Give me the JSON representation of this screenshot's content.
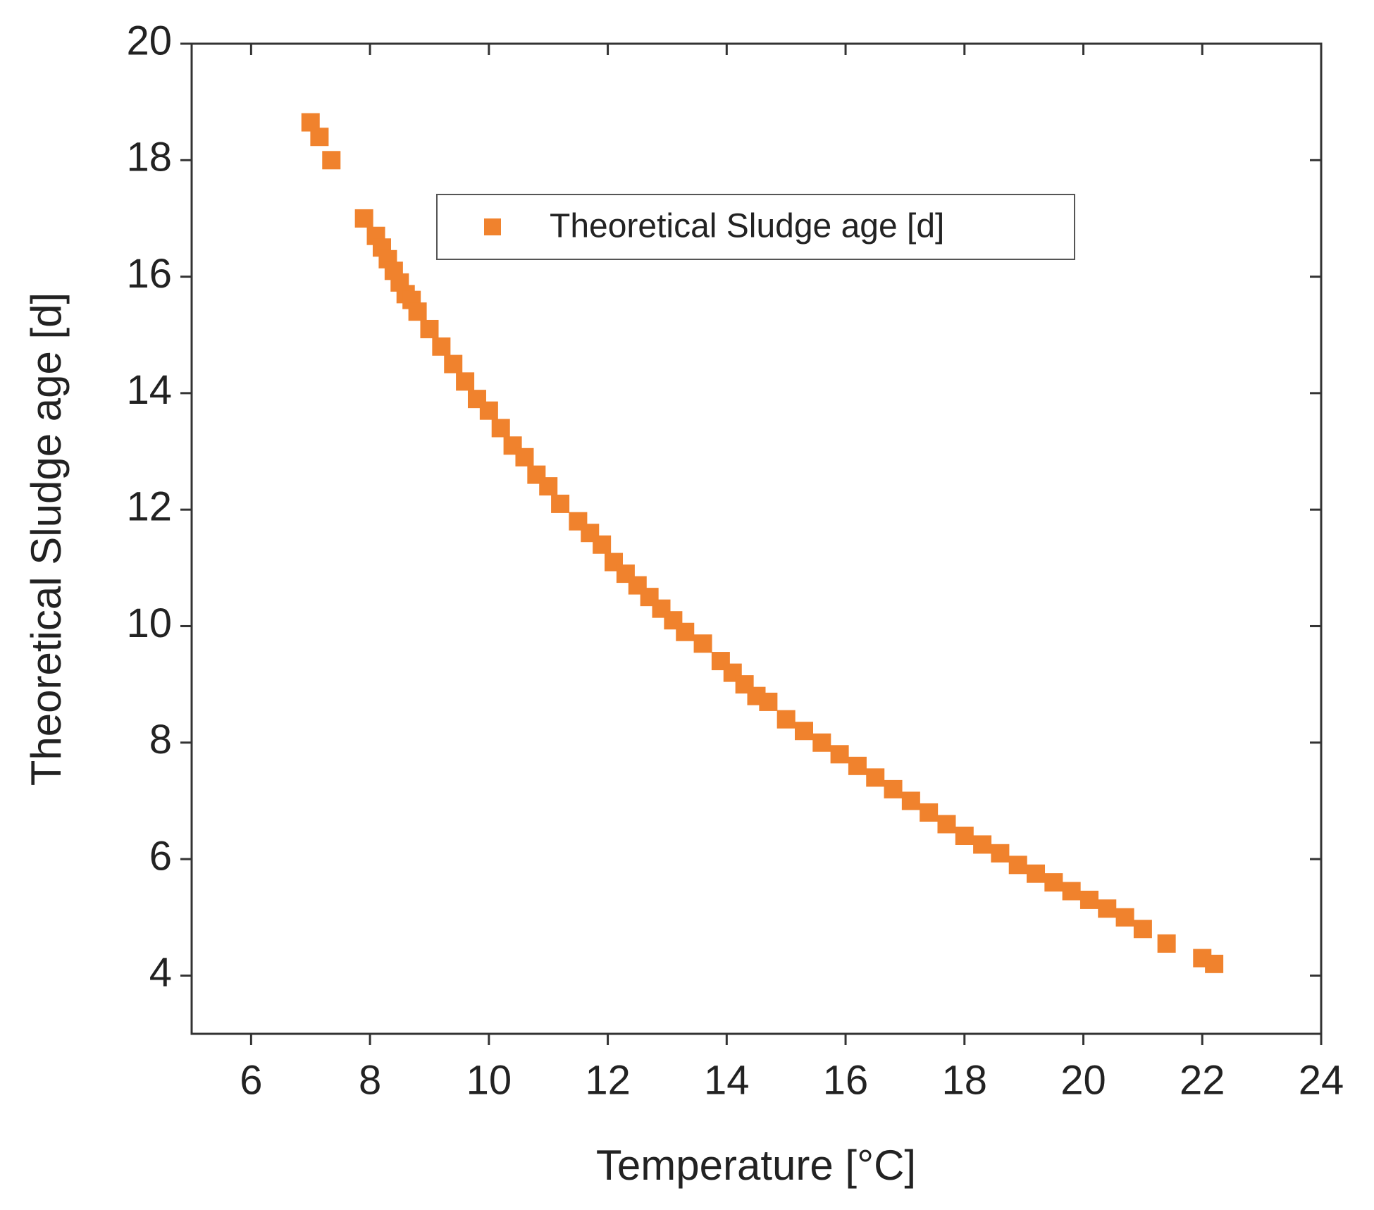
{
  "chart_data": {
    "type": "scatter",
    "x_label": "Temperature [°C]",
    "y_label": "Theoretical  Sludge age   [d]",
    "xlim": [
      5,
      24
    ],
    "ylim": [
      3,
      20
    ],
    "xticks": [
      6,
      8,
      10,
      12,
      14,
      16,
      18,
      20,
      22,
      24
    ],
    "yticks": [
      4,
      6,
      8,
      10,
      12,
      14,
      16,
      18,
      20
    ],
    "legend": "top",
    "series": [
      {
        "name": "Theoretical  Sludge age  [d]",
        "color": "#f0822d",
        "marker": "square",
        "x": [
          7.0,
          7.15,
          7.35,
          7.9,
          8.1,
          8.2,
          8.3,
          8.4,
          8.5,
          8.6,
          8.7,
          8.8,
          9.0,
          9.2,
          9.4,
          9.6,
          9.8,
          10.0,
          10.2,
          10.4,
          10.6,
          10.8,
          11.0,
          11.2,
          11.5,
          11.7,
          11.9,
          12.1,
          12.3,
          12.5,
          12.7,
          12.9,
          13.1,
          13.3,
          13.6,
          13.9,
          14.1,
          14.3,
          14.5,
          14.7,
          15.0,
          15.3,
          15.6,
          15.9,
          16.2,
          16.5,
          16.8,
          17.1,
          17.4,
          17.7,
          18.0,
          18.3,
          18.6,
          18.9,
          19.2,
          19.5,
          19.8,
          20.1,
          20.4,
          20.7,
          21.0,
          21.4,
          22.0,
          22.2
        ],
        "values": [
          18.65,
          18.4,
          18.0,
          17.0,
          16.7,
          16.5,
          16.3,
          16.1,
          15.9,
          15.7,
          15.6,
          15.4,
          15.1,
          14.8,
          14.5,
          14.2,
          13.9,
          13.7,
          13.4,
          13.1,
          12.9,
          12.6,
          12.4,
          12.1,
          11.8,
          11.6,
          11.4,
          11.1,
          10.9,
          10.7,
          10.5,
          10.3,
          10.1,
          9.9,
          9.7,
          9.4,
          9.2,
          9.0,
          8.8,
          8.7,
          8.4,
          8.2,
          8.0,
          7.8,
          7.6,
          7.4,
          7.2,
          7.0,
          6.8,
          6.6,
          6.4,
          6.25,
          6.1,
          5.9,
          5.75,
          5.6,
          5.45,
          5.3,
          5.15,
          5.0,
          4.8,
          4.55,
          4.3,
          4.2
        ]
      }
    ]
  }
}
